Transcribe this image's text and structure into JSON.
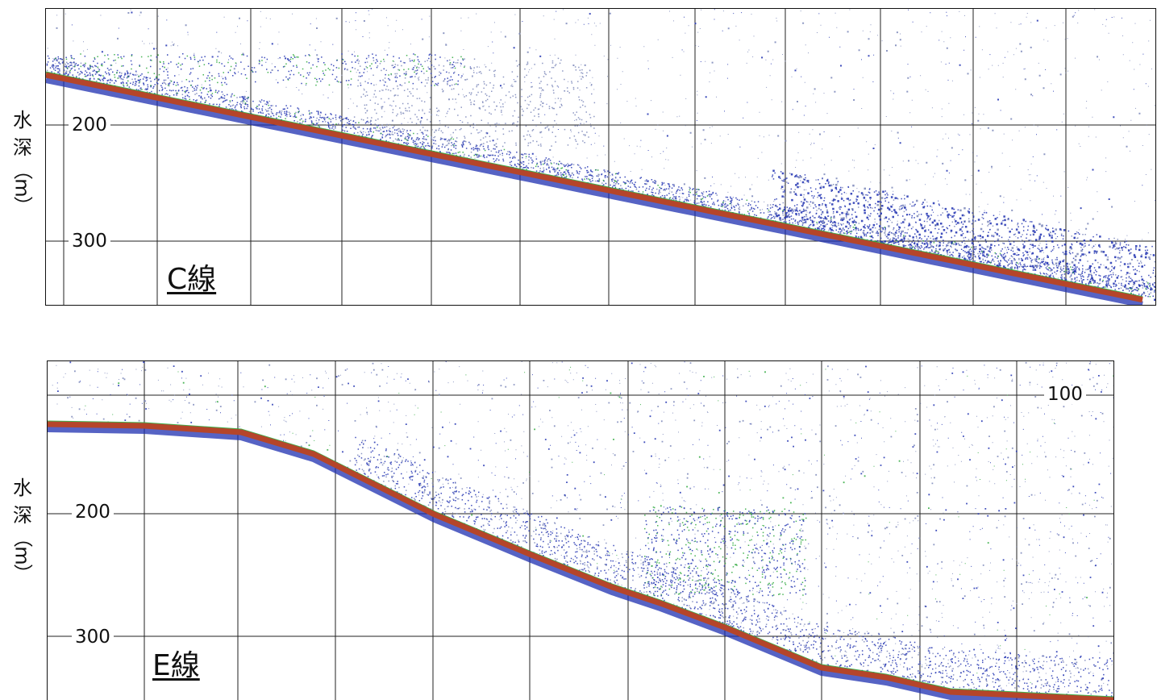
{
  "panels": {
    "c": {
      "name": "C線",
      "ylabel": [
        "水",
        "深",
        "（",
        "m",
        "）"
      ],
      "ticks": [
        "200",
        "300"
      ]
    },
    "e": {
      "name": "E線",
      "ylabel": [
        "水",
        "深",
        "（",
        "m",
        "）"
      ],
      "ticks": [
        "100",
        "200",
        "300"
      ]
    }
  },
  "colors": {
    "seabed": "#b5452a",
    "echo_strong": "#1d2fb0",
    "echo_green": "#2aa83a",
    "echo_yellow": "#e8d52a",
    "echo_faint": "#7a86b8",
    "grid": "#222222"
  }
}
